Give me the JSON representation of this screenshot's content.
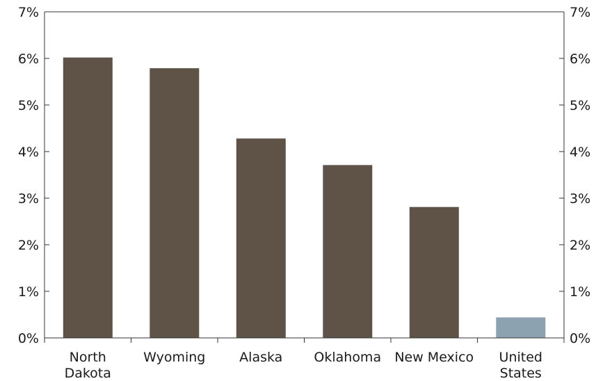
{
  "chart_data": {
    "type": "bar",
    "title": "",
    "xlabel": "",
    "ylabel": "",
    "categories": [
      [
        "North",
        "Dakota"
      ],
      [
        "Wyoming"
      ],
      [
        "Alaska"
      ],
      [
        "Oklahoma"
      ],
      [
        "New Mexico"
      ],
      [
        "United",
        "States"
      ]
    ],
    "values": [
      6.02,
      5.79,
      4.28,
      3.71,
      2.81,
      0.44
    ],
    "bar_colors": [
      "#5f5347",
      "#5f5347",
      "#5f5347",
      "#5f5347",
      "#5f5347",
      "#8ca2b0"
    ],
    "ylim": [
      0,
      7
    ],
    "yticks": [
      "0%",
      "1%",
      "2%",
      "3%",
      "4%",
      "5%",
      "6%",
      "7%"
    ],
    "secondary_yaxis": true,
    "grid": false,
    "legend": "none"
  }
}
